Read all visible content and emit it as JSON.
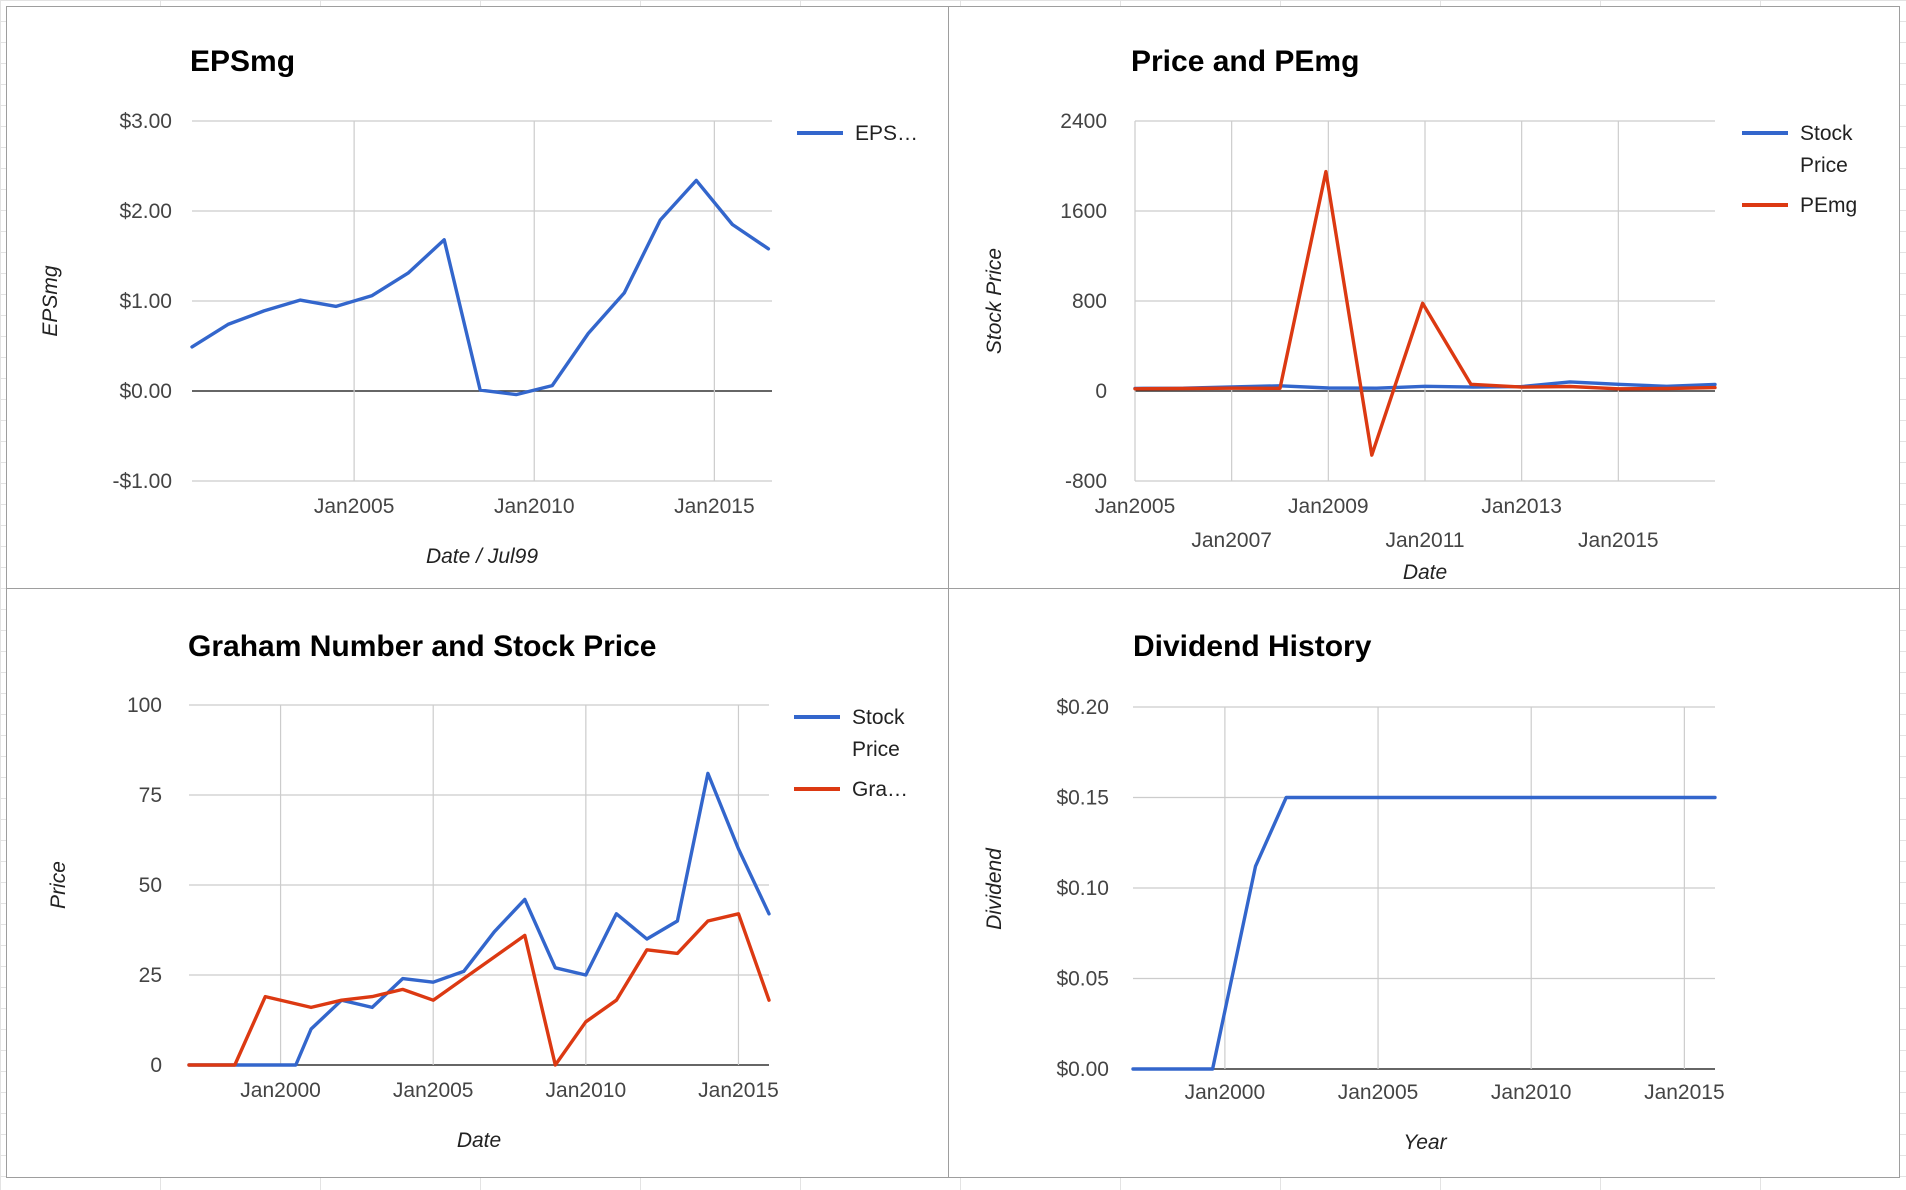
{
  "colors": {
    "blue": "#3366cc",
    "red": "#dc3912",
    "grid": "#cccccc",
    "baseline": "#333333"
  },
  "chart_data": [
    {
      "type": "line",
      "title": "EPSmg",
      "xlabel": "Date / Jul99",
      "ylabel": "EPSmg",
      "ylim": [
        -1,
        3
      ],
      "xlim": [
        2000.5,
        2016.6
      ],
      "yticks": [
        {
          "v": -1,
          "label": "-$1.00"
        },
        {
          "v": 0,
          "label": "$0.00"
        },
        {
          "v": 1,
          "label": "$1.00"
        },
        {
          "v": 2,
          "label": "$2.00"
        },
        {
          "v": 3,
          "label": "$3.00"
        }
      ],
      "xticks": [
        {
          "v": 2005,
          "label": "Jan2005",
          "row": 0
        },
        {
          "v": 2010,
          "label": "Jan2010",
          "row": 0
        },
        {
          "v": 2015,
          "label": "Jan2015",
          "row": 0
        }
      ],
      "grid": true,
      "legend_position": "right",
      "series": [
        {
          "name": "EPS…",
          "color": "#3366cc",
          "x": [
            2000.5,
            2001.5,
            2002.5,
            2003.5,
            2004.5,
            2005.5,
            2006.5,
            2007.5,
            2008.5,
            2009.5,
            2010.5,
            2011.5,
            2012.5,
            2013.5,
            2014.5,
            2015.5,
            2016.5
          ],
          "y": [
            0.49,
            0.74,
            0.89,
            1.01,
            0.94,
            1.06,
            1.31,
            1.68,
            0.01,
            -0.04,
            0.06,
            0.64,
            1.09,
            1.9,
            2.34,
            1.85,
            1.58
          ]
        }
      ]
    },
    {
      "type": "line",
      "title": "Price and PEmg",
      "xlabel": "Date",
      "ylabel": "Stock Price",
      "ylim": [
        -800,
        2400
      ],
      "xlim": [
        2005,
        2017
      ],
      "yticks": [
        {
          "v": -800,
          "label": "-800"
        },
        {
          "v": 0,
          "label": "0"
        },
        {
          "v": 800,
          "label": "800"
        },
        {
          "v": 1600,
          "label": "1600"
        },
        {
          "v": 2400,
          "label": "2400"
        }
      ],
      "xticks": [
        {
          "v": 2005,
          "label": "Jan2005",
          "row": 0
        },
        {
          "v": 2007,
          "label": "Jan2007",
          "row": 1
        },
        {
          "v": 2009,
          "label": "Jan2009",
          "row": 0
        },
        {
          "v": 2011,
          "label": "Jan2011",
          "row": 1
        },
        {
          "v": 2013,
          "label": "Jan2013",
          "row": 0
        },
        {
          "v": 2015,
          "label": "Jan2015",
          "row": 1
        }
      ],
      "grid": true,
      "legend_position": "right",
      "series": [
        {
          "name": "Stock Price",
          "color": "#3366cc",
          "x": [
            2005,
            2006,
            2007,
            2008,
            2009,
            2010,
            2011,
            2012,
            2013,
            2014,
            2015,
            2016,
            2017
          ],
          "y": [
            23,
            25,
            36,
            46,
            27,
            25,
            42,
            35,
            39,
            81,
            60,
            42,
            58
          ]
        },
        {
          "name": "PEmg",
          "color": "#dc3912",
          "x": [
            2005,
            2006,
            2007,
            2008,
            2008.95,
            2009.9,
            2010.95,
            2011.95,
            2013,
            2014,
            2015,
            2016,
            2017
          ],
          "y": [
            20,
            22,
            25,
            24,
            1950,
            -570,
            780,
            60,
            35,
            40,
            20,
            22,
            30
          ]
        }
      ]
    },
    {
      "type": "line",
      "title": "Graham Number and Stock Price",
      "xlabel": "Date",
      "ylabel": "Price",
      "ylim": [
        0,
        100
      ],
      "xlim": [
        1997,
        2016
      ],
      "yticks": [
        {
          "v": 0,
          "label": "0"
        },
        {
          "v": 25,
          "label": "25"
        },
        {
          "v": 50,
          "label": "50"
        },
        {
          "v": 75,
          "label": "75"
        },
        {
          "v": 100,
          "label": "100"
        }
      ],
      "xticks": [
        {
          "v": 2000,
          "label": "Jan2000",
          "row": 0
        },
        {
          "v": 2005,
          "label": "Jan2005",
          "row": 0
        },
        {
          "v": 2010,
          "label": "Jan2010",
          "row": 0
        },
        {
          "v": 2015,
          "label": "Jan2015",
          "row": 0
        }
      ],
      "grid": true,
      "legend_position": "right",
      "series": [
        {
          "name": "Stock Price",
          "color": "#3366cc",
          "x": [
            1997,
            1998.5,
            1999.5,
            2000.5,
            2001,
            2002,
            2003,
            2004,
            2005,
            2006,
            2007,
            2008,
            2009,
            2010,
            2011,
            2012,
            2013,
            2014,
            2015,
            2016
          ],
          "y": [
            0,
            0,
            0,
            0,
            10,
            18,
            16,
            24,
            23,
            26,
            37,
            46,
            27,
            25,
            42,
            35,
            40,
            81,
            60,
            42
          ]
        },
        {
          "name": "Gra…",
          "color": "#dc3912",
          "x": [
            1997,
            1998.5,
            1999.5,
            2001,
            2002,
            2003,
            2004,
            2005,
            2006,
            2007,
            2008,
            2009,
            2010,
            2011,
            2012,
            2013,
            2014,
            2015,
            2016
          ],
          "y": [
            0,
            0,
            19,
            16,
            18,
            19,
            21,
            18,
            24,
            30,
            36,
            0,
            12,
            18,
            32,
            31,
            40,
            42,
            18
          ]
        }
      ]
    },
    {
      "type": "line",
      "title": "Dividend History",
      "xlabel": "Year",
      "ylabel": "Dividend",
      "ylim": [
        0,
        0.2
      ],
      "xlim": [
        1997,
        2016
      ],
      "yticks": [
        {
          "v": 0,
          "label": "$0.00"
        },
        {
          "v": 0.05,
          "label": "$0.05"
        },
        {
          "v": 0.1,
          "label": "$0.10"
        },
        {
          "v": 0.15,
          "label": "$0.15"
        },
        {
          "v": 0.2,
          "label": "$0.20"
        }
      ],
      "xticks": [
        {
          "v": 2000,
          "label": "Jan2000",
          "row": 0
        },
        {
          "v": 2005,
          "label": "Jan2005",
          "row": 0
        },
        {
          "v": 2010,
          "label": "Jan2010",
          "row": 0
        },
        {
          "v": 2015,
          "label": "Jan2015",
          "row": 0
        }
      ],
      "grid": true,
      "legend_position": "none",
      "series": [
        {
          "name": "",
          "color": "#3366cc",
          "x": [
            1997,
            1999.6,
            2001,
            2002,
            2016
          ],
          "y": [
            0,
            0,
            0.112,
            0.15,
            0.15
          ]
        }
      ]
    }
  ]
}
